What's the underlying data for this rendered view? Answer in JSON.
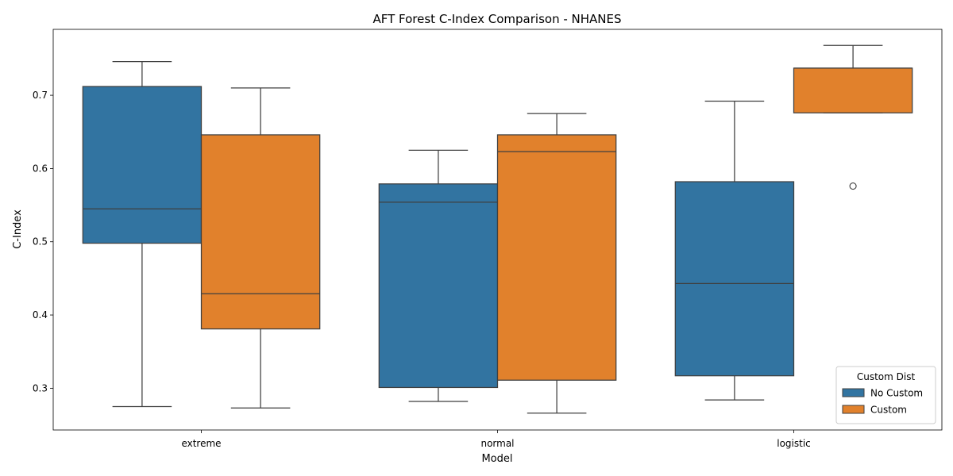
{
  "chart_data": {
    "type": "box",
    "title": "AFT Forest C-Index Comparison - NHANES",
    "xlabel": "Model",
    "ylabel": "C-Index",
    "ylim": [
      0.243,
      0.79
    ],
    "y_ticks": [
      0.3,
      0.4,
      0.5,
      0.6,
      0.7
    ],
    "y_tick_labels": [
      "0.3",
      "0.4",
      "0.5",
      "0.6",
      "0.7"
    ],
    "categories": [
      "extreme",
      "normal",
      "logistic"
    ],
    "grid": false,
    "legend": {
      "title": "Custom Dist",
      "placement": "lower-right"
    },
    "series": [
      {
        "name": "No Custom",
        "color": "#3274a1",
        "boxes": [
          {
            "whisker_low": 0.275,
            "q1": 0.498,
            "median": 0.545,
            "q3": 0.712,
            "whisker_high": 0.746,
            "outliers": []
          },
          {
            "whisker_low": 0.282,
            "q1": 0.301,
            "median": 0.554,
            "q3": 0.579,
            "whisker_high": 0.625,
            "outliers": []
          },
          {
            "whisker_low": 0.284,
            "q1": 0.317,
            "median": 0.443,
            "q3": 0.582,
            "whisker_high": 0.692,
            "outliers": []
          }
        ]
      },
      {
        "name": "Custom",
        "color": "#e1812c",
        "boxes": [
          {
            "whisker_low": 0.273,
            "q1": 0.381,
            "median": 0.429,
            "q3": 0.646,
            "whisker_high": 0.71,
            "outliers": []
          },
          {
            "whisker_low": 0.266,
            "q1": 0.311,
            "median": 0.623,
            "q3": 0.646,
            "whisker_high": 0.675,
            "outliers": []
          },
          {
            "whisker_low": 0.676,
            "q1": 0.676,
            "median": 0.737,
            "q3": 0.737,
            "whisker_high": 0.768,
            "outliers": [
              0.576
            ]
          }
        ]
      }
    ]
  }
}
